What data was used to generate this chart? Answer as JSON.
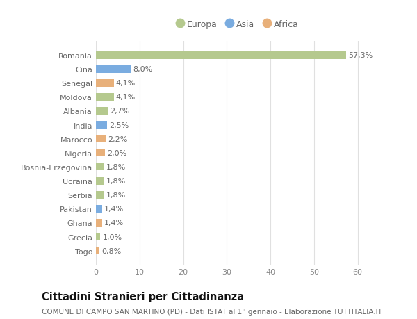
{
  "categories": [
    "Romania",
    "Cina",
    "Senegal",
    "Moldova",
    "Albania",
    "India",
    "Marocco",
    "Nigeria",
    "Bosnia-Erzegovina",
    "Ucraina",
    "Serbia",
    "Pakistan",
    "Ghana",
    "Grecia",
    "Togo"
  ],
  "values": [
    57.3,
    8.0,
    4.1,
    4.1,
    2.7,
    2.5,
    2.2,
    2.0,
    1.8,
    1.8,
    1.8,
    1.4,
    1.4,
    1.0,
    0.8
  ],
  "continents": [
    "Europa",
    "Asia",
    "Africa",
    "Europa",
    "Europa",
    "Asia",
    "Africa",
    "Africa",
    "Europa",
    "Europa",
    "Europa",
    "Asia",
    "Africa",
    "Europa",
    "Africa"
  ],
  "labels": [
    "57,3%",
    "8,0%",
    "4,1%",
    "4,1%",
    "2,7%",
    "2,5%",
    "2,2%",
    "2,0%",
    "1,8%",
    "1,8%",
    "1,8%",
    "1,4%",
    "1,4%",
    "1,0%",
    "0,8%"
  ],
  "continent_colors": {
    "Europa": "#b5c98e",
    "Asia": "#7aace0",
    "Africa": "#e8b07a"
  },
  "legend_items": [
    "Europa",
    "Asia",
    "Africa"
  ],
  "xlim": [
    0,
    65
  ],
  "xticks": [
    0,
    10,
    20,
    30,
    40,
    50,
    60
  ],
  "title": "Cittadini Stranieri per Cittadinanza",
  "subtitle": "COMUNE DI CAMPO SAN MARTINO (PD) - Dati ISTAT al 1° gennaio - Elaborazione TUTTITALIA.IT",
  "background_color": "#ffffff",
  "grid_color": "#e0e0e0",
  "bar_height": 0.55,
  "label_fontsize": 8,
  "tick_fontsize": 8,
  "title_fontsize": 10.5,
  "subtitle_fontsize": 7.5
}
